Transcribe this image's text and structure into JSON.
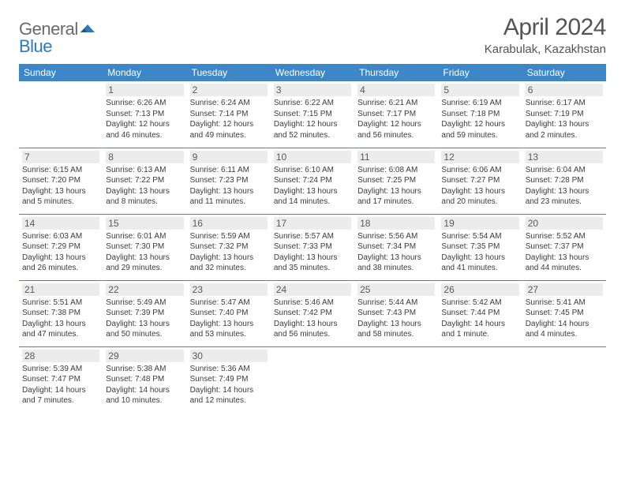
{
  "logo": {
    "gray": "General",
    "blue": "Blue"
  },
  "header": {
    "title": "April 2024",
    "location": "Karabulak, Kazakhstan"
  },
  "colors": {
    "accent": "#3d87c7",
    "day_bg": "#ececec",
    "text": "#3b3b3b"
  },
  "weekdays": [
    "Sunday",
    "Monday",
    "Tuesday",
    "Wednesday",
    "Thursday",
    "Friday",
    "Saturday"
  ],
  "weeks": [
    [
      null,
      {
        "n": "1",
        "sr": "Sunrise: 6:26 AM",
        "ss": "Sunset: 7:13 PM",
        "d1": "Daylight: 12 hours",
        "d2": "and 46 minutes."
      },
      {
        "n": "2",
        "sr": "Sunrise: 6:24 AM",
        "ss": "Sunset: 7:14 PM",
        "d1": "Daylight: 12 hours",
        "d2": "and 49 minutes."
      },
      {
        "n": "3",
        "sr": "Sunrise: 6:22 AM",
        "ss": "Sunset: 7:15 PM",
        "d1": "Daylight: 12 hours",
        "d2": "and 52 minutes."
      },
      {
        "n": "4",
        "sr": "Sunrise: 6:21 AM",
        "ss": "Sunset: 7:17 PM",
        "d1": "Daylight: 12 hours",
        "d2": "and 56 minutes."
      },
      {
        "n": "5",
        "sr": "Sunrise: 6:19 AM",
        "ss": "Sunset: 7:18 PM",
        "d1": "Daylight: 12 hours",
        "d2": "and 59 minutes."
      },
      {
        "n": "6",
        "sr": "Sunrise: 6:17 AM",
        "ss": "Sunset: 7:19 PM",
        "d1": "Daylight: 13 hours",
        "d2": "and 2 minutes."
      }
    ],
    [
      {
        "n": "7",
        "sr": "Sunrise: 6:15 AM",
        "ss": "Sunset: 7:20 PM",
        "d1": "Daylight: 13 hours",
        "d2": "and 5 minutes."
      },
      {
        "n": "8",
        "sr": "Sunrise: 6:13 AM",
        "ss": "Sunset: 7:22 PM",
        "d1": "Daylight: 13 hours",
        "d2": "and 8 minutes."
      },
      {
        "n": "9",
        "sr": "Sunrise: 6:11 AM",
        "ss": "Sunset: 7:23 PM",
        "d1": "Daylight: 13 hours",
        "d2": "and 11 minutes."
      },
      {
        "n": "10",
        "sr": "Sunrise: 6:10 AM",
        "ss": "Sunset: 7:24 PM",
        "d1": "Daylight: 13 hours",
        "d2": "and 14 minutes."
      },
      {
        "n": "11",
        "sr": "Sunrise: 6:08 AM",
        "ss": "Sunset: 7:25 PM",
        "d1": "Daylight: 13 hours",
        "d2": "and 17 minutes."
      },
      {
        "n": "12",
        "sr": "Sunrise: 6:06 AM",
        "ss": "Sunset: 7:27 PM",
        "d1": "Daylight: 13 hours",
        "d2": "and 20 minutes."
      },
      {
        "n": "13",
        "sr": "Sunrise: 6:04 AM",
        "ss": "Sunset: 7:28 PM",
        "d1": "Daylight: 13 hours",
        "d2": "and 23 minutes."
      }
    ],
    [
      {
        "n": "14",
        "sr": "Sunrise: 6:03 AM",
        "ss": "Sunset: 7:29 PM",
        "d1": "Daylight: 13 hours",
        "d2": "and 26 minutes."
      },
      {
        "n": "15",
        "sr": "Sunrise: 6:01 AM",
        "ss": "Sunset: 7:30 PM",
        "d1": "Daylight: 13 hours",
        "d2": "and 29 minutes."
      },
      {
        "n": "16",
        "sr": "Sunrise: 5:59 AM",
        "ss": "Sunset: 7:32 PM",
        "d1": "Daylight: 13 hours",
        "d2": "and 32 minutes."
      },
      {
        "n": "17",
        "sr": "Sunrise: 5:57 AM",
        "ss": "Sunset: 7:33 PM",
        "d1": "Daylight: 13 hours",
        "d2": "and 35 minutes."
      },
      {
        "n": "18",
        "sr": "Sunrise: 5:56 AM",
        "ss": "Sunset: 7:34 PM",
        "d1": "Daylight: 13 hours",
        "d2": "and 38 minutes."
      },
      {
        "n": "19",
        "sr": "Sunrise: 5:54 AM",
        "ss": "Sunset: 7:35 PM",
        "d1": "Daylight: 13 hours",
        "d2": "and 41 minutes."
      },
      {
        "n": "20",
        "sr": "Sunrise: 5:52 AM",
        "ss": "Sunset: 7:37 PM",
        "d1": "Daylight: 13 hours",
        "d2": "and 44 minutes."
      }
    ],
    [
      {
        "n": "21",
        "sr": "Sunrise: 5:51 AM",
        "ss": "Sunset: 7:38 PM",
        "d1": "Daylight: 13 hours",
        "d2": "and 47 minutes."
      },
      {
        "n": "22",
        "sr": "Sunrise: 5:49 AM",
        "ss": "Sunset: 7:39 PM",
        "d1": "Daylight: 13 hours",
        "d2": "and 50 minutes."
      },
      {
        "n": "23",
        "sr": "Sunrise: 5:47 AM",
        "ss": "Sunset: 7:40 PM",
        "d1": "Daylight: 13 hours",
        "d2": "and 53 minutes."
      },
      {
        "n": "24",
        "sr": "Sunrise: 5:46 AM",
        "ss": "Sunset: 7:42 PM",
        "d1": "Daylight: 13 hours",
        "d2": "and 56 minutes."
      },
      {
        "n": "25",
        "sr": "Sunrise: 5:44 AM",
        "ss": "Sunset: 7:43 PM",
        "d1": "Daylight: 13 hours",
        "d2": "and 58 minutes."
      },
      {
        "n": "26",
        "sr": "Sunrise: 5:42 AM",
        "ss": "Sunset: 7:44 PM",
        "d1": "Daylight: 14 hours",
        "d2": "and 1 minute."
      },
      {
        "n": "27",
        "sr": "Sunrise: 5:41 AM",
        "ss": "Sunset: 7:45 PM",
        "d1": "Daylight: 14 hours",
        "d2": "and 4 minutes."
      }
    ],
    [
      {
        "n": "28",
        "sr": "Sunrise: 5:39 AM",
        "ss": "Sunset: 7:47 PM",
        "d1": "Daylight: 14 hours",
        "d2": "and 7 minutes."
      },
      {
        "n": "29",
        "sr": "Sunrise: 5:38 AM",
        "ss": "Sunset: 7:48 PM",
        "d1": "Daylight: 14 hours",
        "d2": "and 10 minutes."
      },
      {
        "n": "30",
        "sr": "Sunrise: 5:36 AM",
        "ss": "Sunset: 7:49 PM",
        "d1": "Daylight: 14 hours",
        "d2": "and 12 minutes."
      },
      null,
      null,
      null,
      null
    ]
  ]
}
